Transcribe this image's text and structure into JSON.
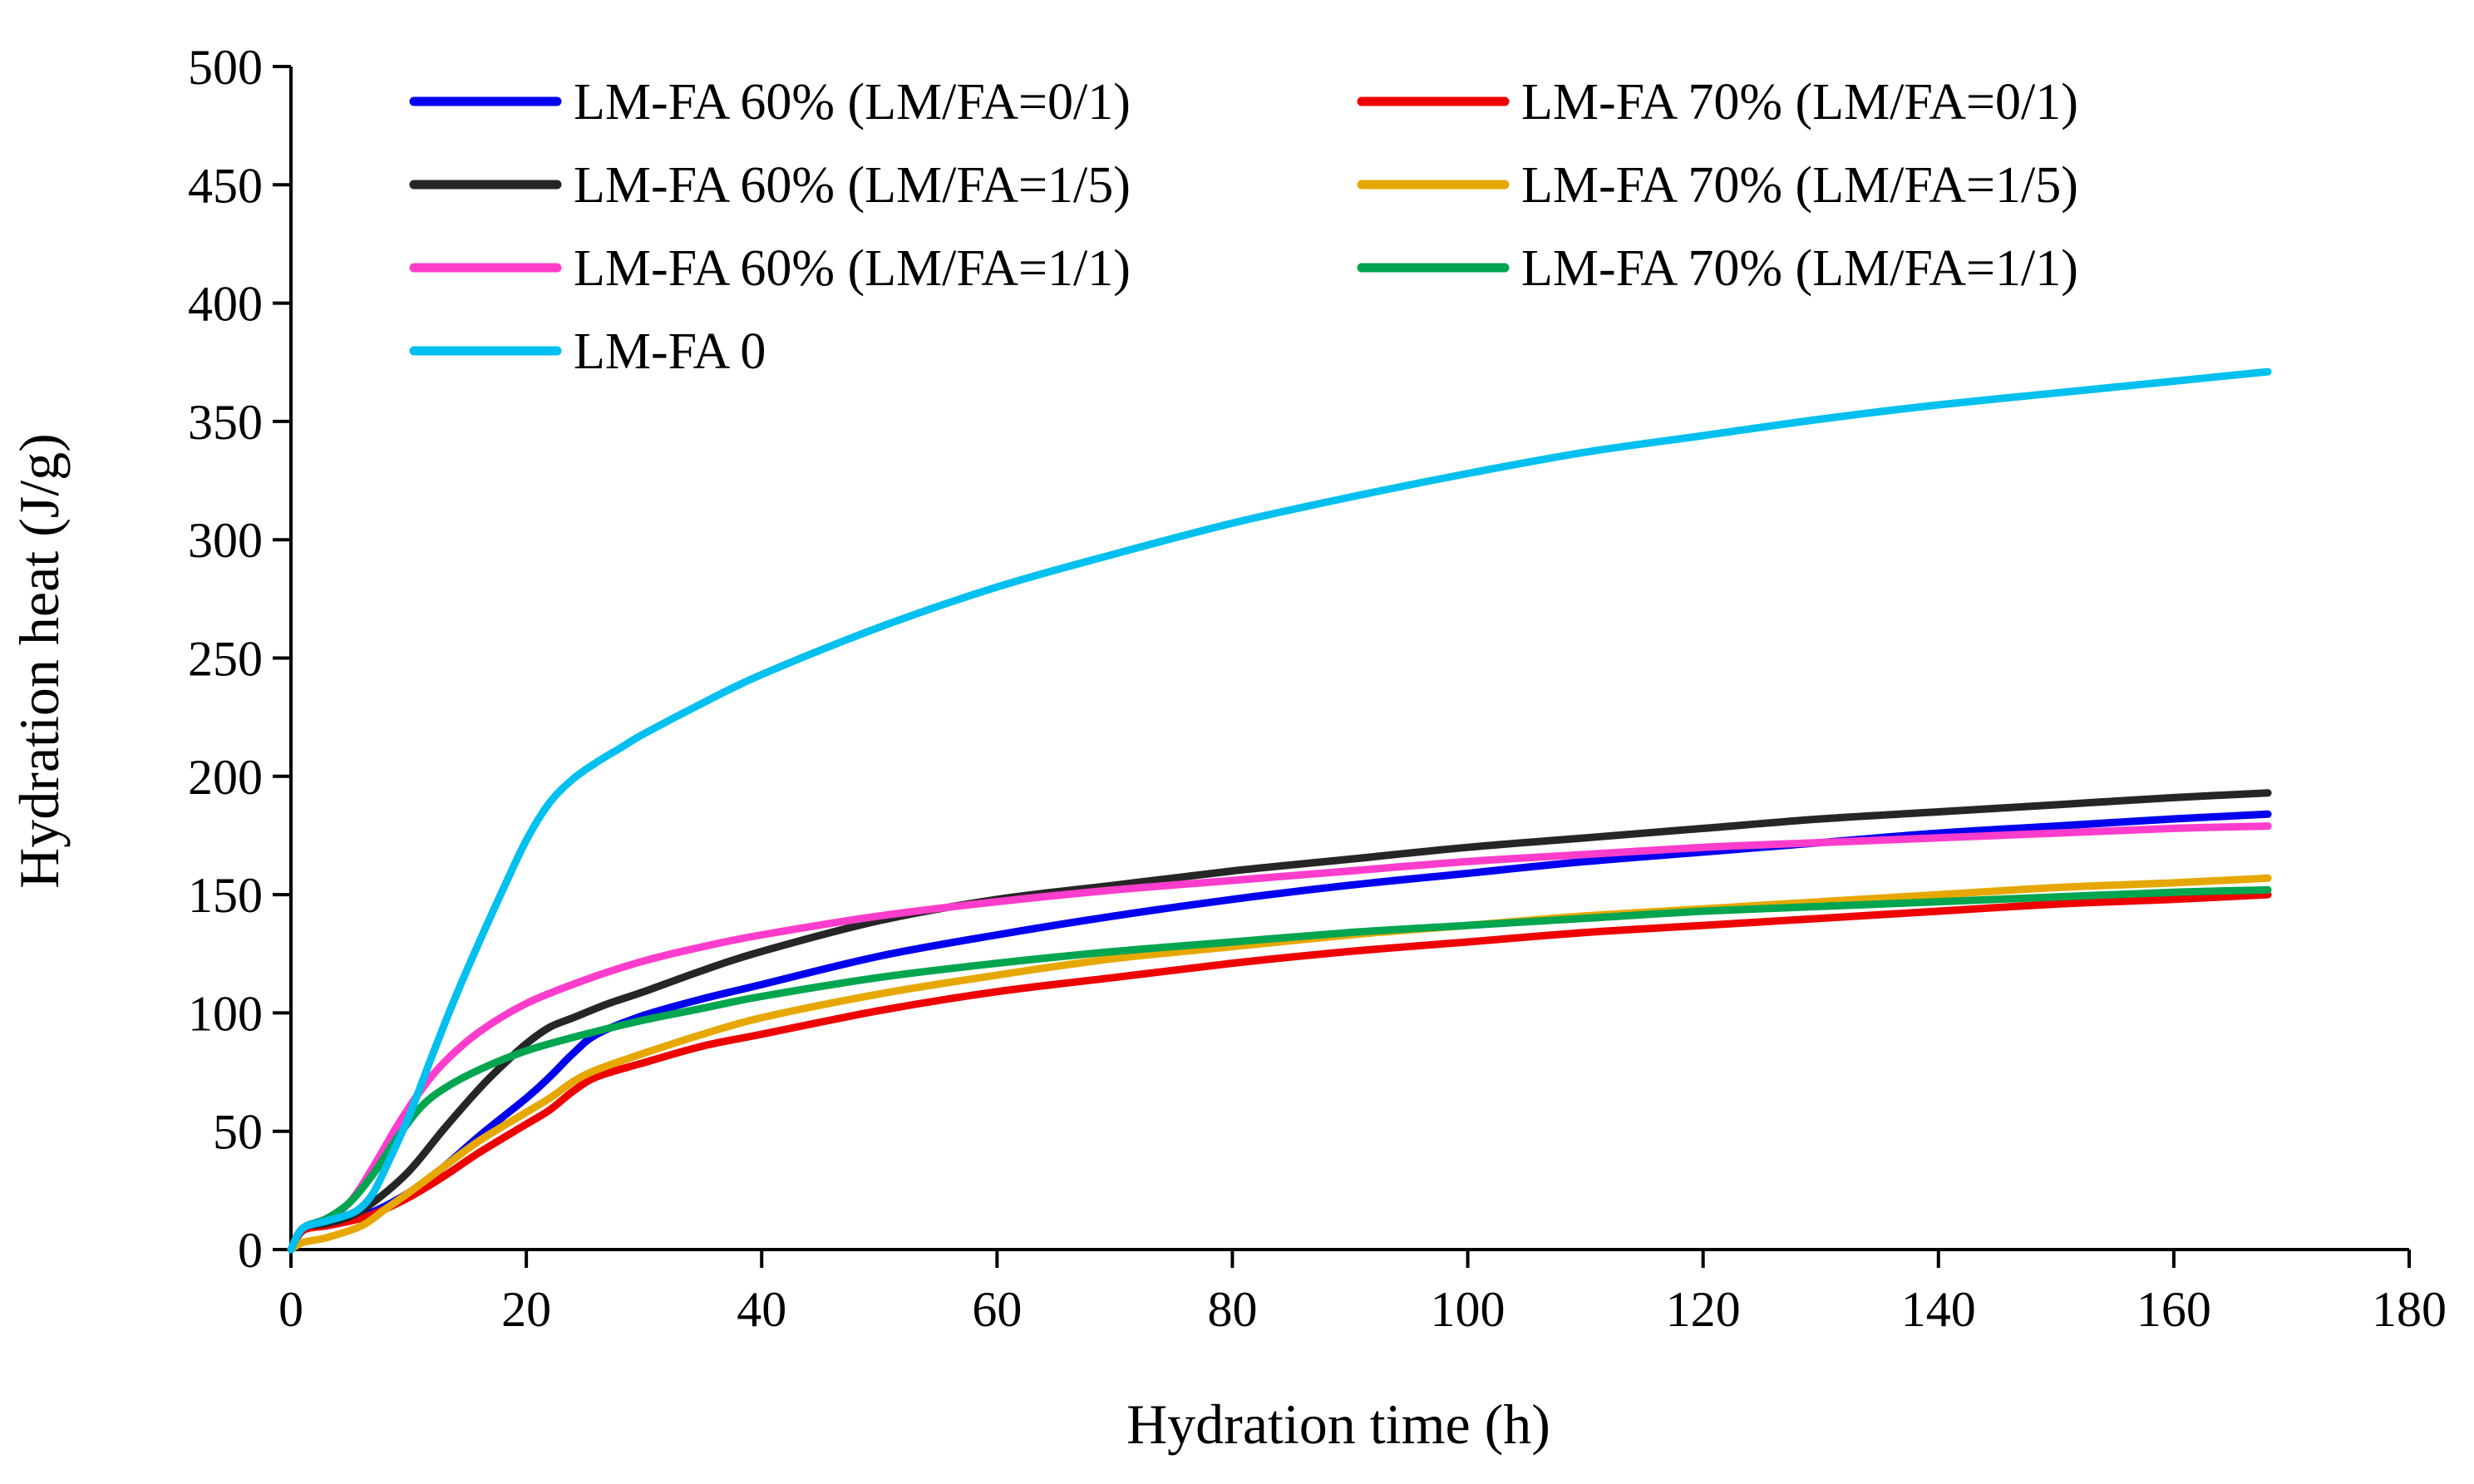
{
  "chart_data": {
    "type": "line",
    "title": "",
    "xlabel": "Hydration time (h)",
    "ylabel": "Hydration heat (J/g)",
    "xlim": [
      0,
      180
    ],
    "ylim": [
      0,
      500
    ],
    "xticks": [
      0,
      20,
      40,
      60,
      80,
      100,
      120,
      140,
      160,
      180
    ],
    "yticks": [
      0,
      50,
      100,
      150,
      200,
      250,
      300,
      350,
      400,
      450,
      500
    ],
    "grid": false,
    "legend_position": "top-left",
    "series": [
      {
        "name": "LM-FA 60% (LM/FA=0/1)",
        "color": "#0000EE",
        "x": [
          0,
          1,
          3,
          5,
          7,
          10,
          13,
          16,
          20,
          22,
          24,
          26,
          30,
          35,
          40,
          50,
          60,
          70,
          80,
          90,
          100,
          110,
          120,
          130,
          140,
          150,
          160,
          168
        ],
        "y": [
          0,
          8,
          11,
          13,
          16,
          24,
          35,
          48,
          64,
          73,
          83,
          91,
          99,
          106,
          112,
          124,
          133,
          141,
          148,
          154,
          159,
          164,
          168,
          172,
          176,
          179,
          182,
          184
        ]
      },
      {
        "name": "LM-FA 70% (LM/FA=0/1)",
        "color": "#EE0000",
        "x": [
          0,
          1,
          3,
          5,
          7,
          10,
          13,
          16,
          20,
          22,
          24,
          26,
          30,
          35,
          40,
          50,
          60,
          70,
          80,
          90,
          100,
          110,
          120,
          130,
          140,
          150,
          160,
          168
        ],
        "y": [
          0,
          8,
          10,
          12,
          15,
          22,
          31,
          41,
          53,
          59,
          67,
          73,
          79,
          86,
          91,
          101,
          109,
          115,
          121,
          126,
          130,
          134,
          137,
          140,
          143,
          146,
          148,
          150
        ]
      },
      {
        "name": "LM-FA 60% (LM/FA=1/5)",
        "color": "#262626",
        "x": [
          0,
          1,
          3,
          5,
          7,
          10,
          13,
          16,
          18,
          20,
          22,
          24,
          27,
          30,
          35,
          40,
          50,
          60,
          70,
          80,
          90,
          100,
          110,
          120,
          130,
          140,
          150,
          160,
          168
        ],
        "y": [
          0,
          9,
          11,
          14,
          20,
          33,
          51,
          68,
          78,
          87,
          94,
          98,
          104,
          109,
          118,
          126,
          139,
          148,
          154,
          160,
          165,
          170,
          174,
          178,
          182,
          185,
          188,
          191,
          193
        ]
      },
      {
        "name": "LM-FA 70% (LM/FA=1/5)",
        "color": "#E6A800",
        "x": [
          0,
          1,
          3,
          6,
          8,
          10,
          13,
          16,
          20,
          22,
          24,
          26,
          30,
          35,
          40,
          50,
          60,
          70,
          80,
          90,
          100,
          110,
          120,
          130,
          140,
          150,
          160,
          168
        ],
        "y": [
          0,
          3,
          5,
          10,
          17,
          24,
          35,
          46,
          58,
          64,
          71,
          76,
          83,
          91,
          98,
          108,
          116,
          123,
          128,
          133,
          137,
          141,
          144,
          147,
          150,
          153,
          155,
          157
        ]
      },
      {
        "name": "LM-FA 60% (LM/FA=1/1)",
        "color": "#FF3DCC",
        "x": [
          0,
          1,
          3,
          5,
          7,
          9,
          11,
          13,
          16,
          20,
          25,
          30,
          35,
          40,
          50,
          60,
          70,
          80,
          90,
          100,
          110,
          120,
          130,
          140,
          150,
          160,
          168
        ],
        "y": [
          0,
          9,
          13,
          20,
          35,
          52,
          67,
          79,
          92,
          104,
          114,
          122,
          128,
          133,
          141,
          147,
          152,
          156,
          160,
          164,
          167,
          170,
          172,
          174,
          176,
          178,
          179
        ]
      },
      {
        "name": "LM-FA 70% (LM/FA=1/1)",
        "color": "#00A550",
        "x": [
          0,
          1,
          3,
          5,
          7,
          9,
          11,
          13,
          16,
          20,
          25,
          30,
          35,
          40,
          50,
          60,
          70,
          80,
          90,
          100,
          110,
          120,
          130,
          140,
          150,
          160,
          168
        ],
        "y": [
          0,
          9,
          13,
          20,
          32,
          47,
          60,
          68,
          76,
          84,
          91,
          97,
          102,
          107,
          115,
          121,
          126,
          130,
          134,
          137,
          140,
          143,
          145,
          147,
          149,
          151,
          152
        ]
      },
      {
        "name": "LM-FA 0",
        "color": "#00C0F0",
        "x": [
          0,
          1,
          3,
          5,
          6,
          7,
          8,
          10,
          12,
          14,
          16,
          18,
          20,
          22,
          24,
          26,
          28,
          30,
          35,
          40,
          50,
          60,
          70,
          80,
          90,
          100,
          110,
          120,
          130,
          140,
          150,
          160,
          168
        ],
        "y": [
          0,
          9,
          12,
          15,
          18,
          24,
          34,
          56,
          82,
          107,
          130,
          152,
          173,
          189,
          199,
          206,
          212,
          218,
          231,
          243,
          263,
          280,
          294,
          307,
          318,
          328,
          337,
          344,
          351,
          357,
          362,
          367,
          371
        ]
      }
    ]
  }
}
